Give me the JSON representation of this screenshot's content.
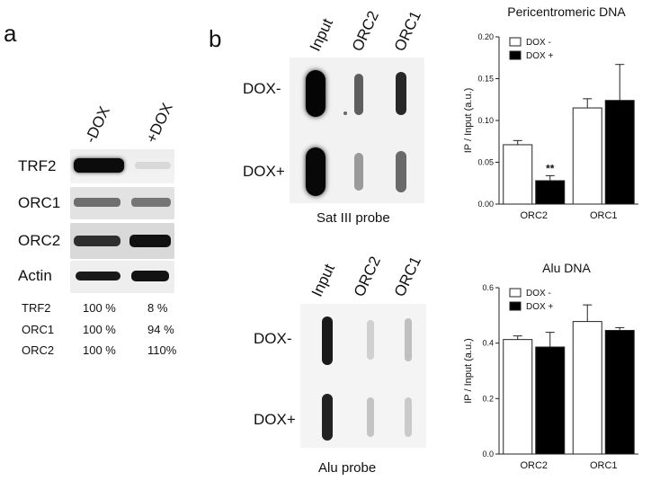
{
  "panel_a": {
    "letter": "a",
    "columns": [
      "-DOX",
      "+DOX"
    ],
    "proteins": [
      "TRF2",
      "ORC1",
      "ORC2",
      "Actin"
    ],
    "quant": [
      {
        "name": "TRF2",
        "minus": "100 %",
        "plus": "8 %"
      },
      {
        "name": "ORC1",
        "minus": "100 %",
        "plus": "94 %"
      },
      {
        "name": "ORC2",
        "minus": "100 %",
        "plus": "110%"
      }
    ]
  },
  "panel_b": {
    "letter": "b",
    "blot1": {
      "columns": [
        "Input",
        "ORC2",
        "ORC1"
      ],
      "rows": [
        "DOX-",
        "DOX+"
      ],
      "caption": "Sat III probe"
    },
    "blot2": {
      "columns": [
        "Input",
        "ORC2",
        "ORC1"
      ],
      "rows": [
        "DOX-",
        "DOX+"
      ],
      "caption": "Alu probe"
    }
  },
  "chart_data": [
    {
      "type": "bar",
      "title": "Pericentromeric DNA",
      "ylabel": "IP / Input (a.u.)",
      "xlabel": "",
      "categories": [
        "ORC2",
        "ORC1"
      ],
      "ylim": [
        0,
        0.2
      ],
      "yticks": [
        "0.00",
        "0.05",
        "0.10",
        "0.15",
        "0.20"
      ],
      "series": [
        {
          "name": "DOX -",
          "color": "#ffffff",
          "values": [
            0.071,
            0.115
          ],
          "errors": [
            0.005,
            0.011
          ]
        },
        {
          "name": "DOX +",
          "color": "#000000",
          "values": [
            0.028,
            0.124
          ],
          "errors": [
            0.006,
            0.043
          ]
        }
      ],
      "annotations": [
        {
          "category": "ORC2",
          "series": "DOX +",
          "text": "**"
        }
      ],
      "legend": "top-left",
      "grid": false
    },
    {
      "type": "bar",
      "title": "Alu DNA",
      "ylabel": "IP / Input (a.u.)",
      "xlabel": "",
      "categories": [
        "ORC2",
        "ORC1"
      ],
      "ylim": [
        0,
        0.6
      ],
      "yticks": [
        "0.0",
        "0.2",
        "0.4",
        "0.6"
      ],
      "series": [
        {
          "name": "DOX -",
          "color": "#ffffff",
          "values": [
            0.413,
            0.478
          ],
          "errors": [
            0.013,
            0.06
          ]
        },
        {
          "name": "DOX +",
          "color": "#000000",
          "values": [
            0.386,
            0.446
          ],
          "errors": [
            0.053,
            0.01
          ]
        }
      ],
      "annotations": [],
      "legend": "top-left",
      "grid": false
    }
  ]
}
